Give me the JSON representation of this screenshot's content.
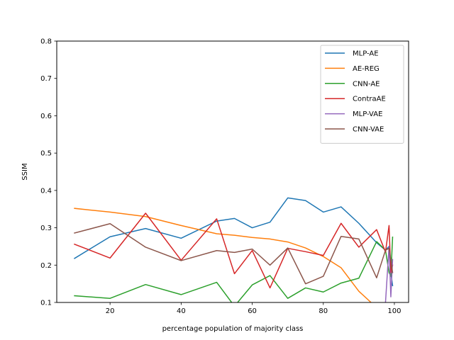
{
  "chart_data": {
    "type": "line",
    "title": "",
    "xlabel": "percentage population of majority class",
    "ylabel": "SSIM",
    "xlim": [
      5,
      104
    ],
    "ylim": [
      0.1,
      0.8
    ],
    "xticks": [
      20,
      40,
      60,
      80,
      100
    ],
    "xtick_labels": [
      "20",
      "40",
      "60",
      "80",
      "100"
    ],
    "yticks": [
      0.1,
      0.2,
      0.3,
      0.4,
      0.5,
      0.6,
      0.7,
      0.8
    ],
    "ytick_labels": [
      "0.1",
      "0.2",
      "0.3",
      "0.4",
      "0.5",
      "0.6",
      "0.7",
      "0.8"
    ],
    "grid": false,
    "legend_position": "top-right",
    "series": [
      {
        "name": "MLP-AE",
        "color": "#1f77b4",
        "x": [
          10,
          20,
          30,
          40,
          50,
          55,
          60,
          65,
          70,
          75,
          80,
          85,
          90,
          95,
          97.5,
          98.5,
          99,
          99.5
        ],
        "y": [
          0.218,
          0.276,
          0.298,
          0.272,
          0.318,
          0.325,
          0.3,
          0.315,
          0.38,
          0.373,
          0.342,
          0.356,
          0.312,
          0.26,
          0.24,
          0.25,
          0.18,
          0.145
        ]
      },
      {
        "name": "AE-REG",
        "color": "#ff7f0e",
        "x": [
          10,
          20,
          30,
          40,
          50,
          55,
          60,
          65,
          70,
          75,
          80,
          85,
          90,
          94
        ],
        "y": [
          0.352,
          0.342,
          0.33,
          0.306,
          0.284,
          0.28,
          0.274,
          0.27,
          0.262,
          0.246,
          0.223,
          0.193,
          0.13,
          0.095
        ]
      },
      {
        "name": "CNN-AE",
        "color": "#2ca02c",
        "x": [
          10,
          20,
          30,
          40,
          50,
          55,
          60,
          65,
          70,
          75,
          80,
          85,
          90,
          95,
          97.5,
          98.5,
          99,
          99.5
        ],
        "y": [
          0.118,
          0.111,
          0.148,
          0.121,
          0.154,
          0.09,
          0.147,
          0.172,
          0.111,
          0.139,
          0.128,
          0.152,
          0.165,
          0.263,
          0.24,
          0.18,
          0.17,
          0.275
        ]
      },
      {
        "name": "ContraAE",
        "color": "#d62728",
        "x": [
          10,
          20,
          30,
          40,
          50,
          55,
          60,
          65,
          70,
          75,
          80,
          85,
          90,
          95,
          97.5,
          98.5,
          99,
          99.5
        ],
        "y": [
          0.256,
          0.219,
          0.339,
          0.213,
          0.324,
          0.177,
          0.239,
          0.139,
          0.245,
          0.236,
          0.226,
          0.312,
          0.248,
          0.295,
          0.235,
          0.306,
          0.18,
          0.2
        ]
      },
      {
        "name": "MLP-VAE",
        "color": "#9467bd",
        "x": [
          97.5,
          98.5,
          99,
          99.5
        ],
        "y": [
          0.1,
          0.25,
          0.115,
          0.215
        ]
      },
      {
        "name": "CNN-VAE",
        "color": "#8c564b",
        "x": [
          10,
          20,
          30,
          40,
          50,
          55,
          60,
          65,
          70,
          75,
          80,
          85,
          90,
          95,
          97.5,
          98.5,
          99,
          99.5
        ],
        "y": [
          0.286,
          0.311,
          0.248,
          0.212,
          0.239,
          0.234,
          0.243,
          0.2,
          0.246,
          0.15,
          0.17,
          0.277,
          0.27,
          0.166,
          0.24,
          0.245,
          0.215,
          0.18
        ]
      }
    ]
  }
}
